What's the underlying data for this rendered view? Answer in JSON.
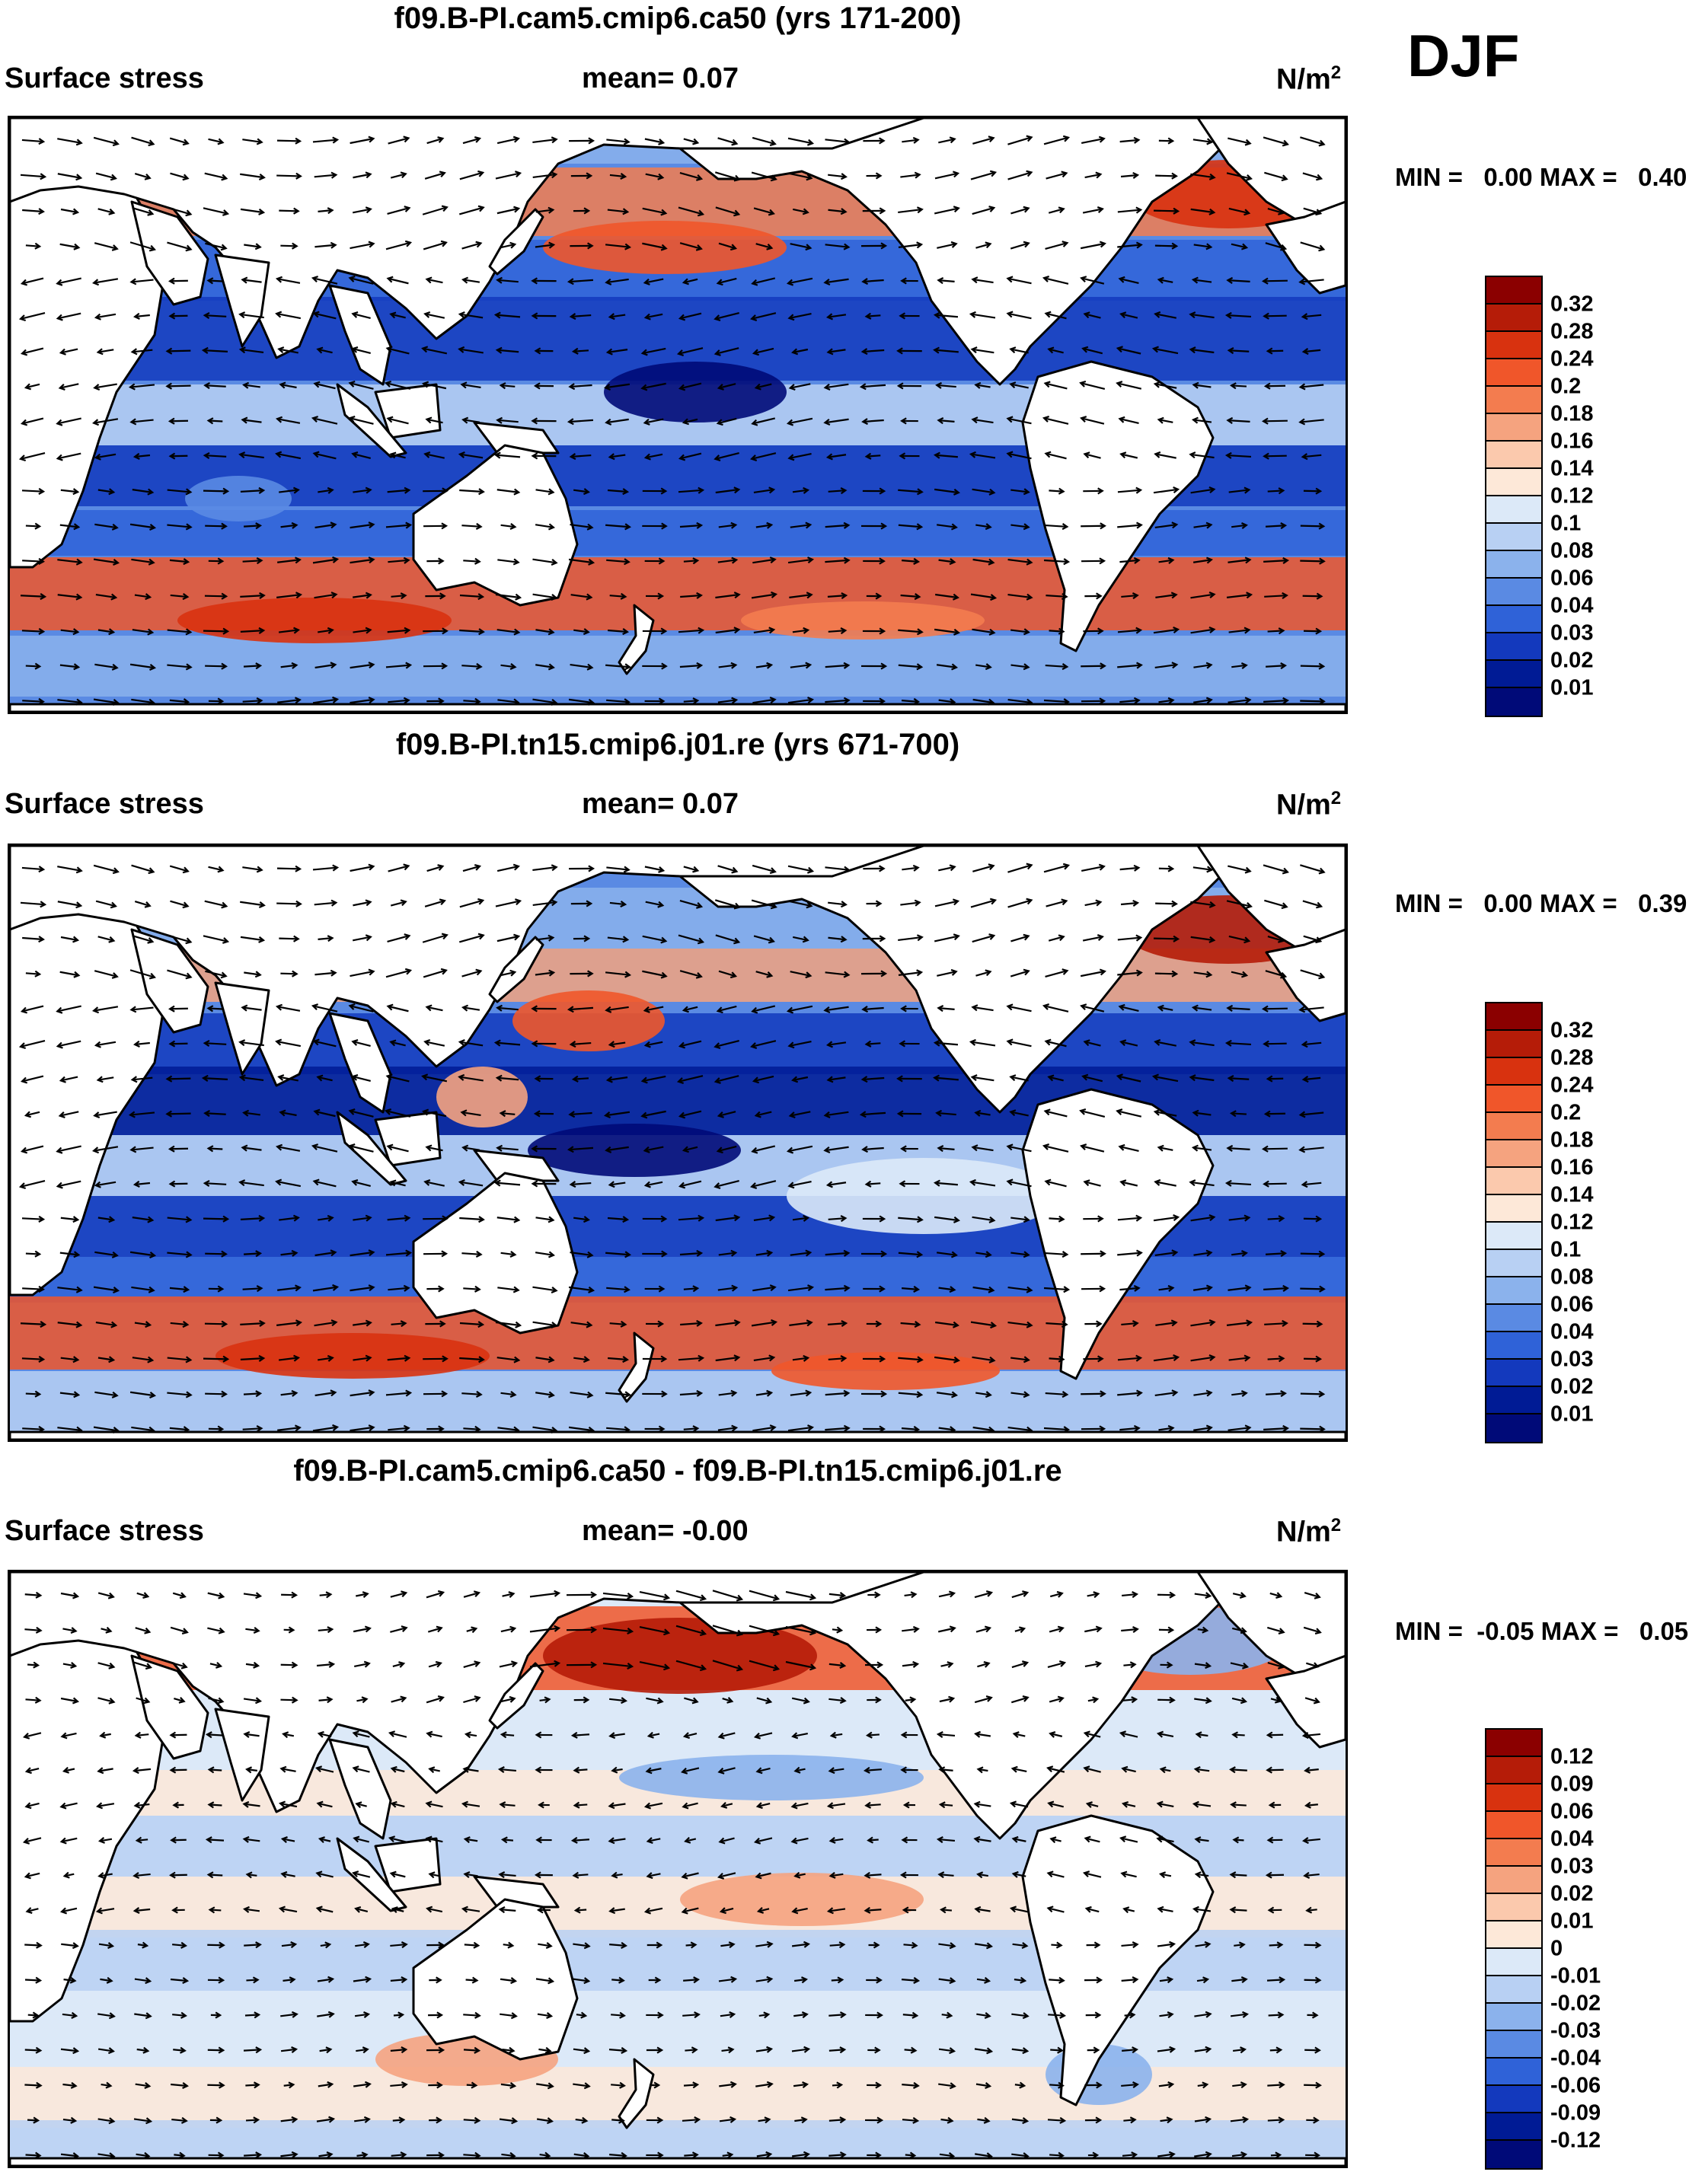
{
  "season": "DJF",
  "panels": [
    {
      "title": "f09.B-PI.cam5.cmip6.ca50 (yrs 171-200)",
      "variable": "Surface stress",
      "mean_label": "mean=   0.07",
      "units": "N/m",
      "units_sup": "2",
      "min_max": "MIN =   0.00 MAX =   0.40",
      "colorbar_labels": [
        "0.32",
        "0.28",
        "0.24",
        "0.2",
        "0.18",
        "0.16",
        "0.14",
        "0.12",
        "0.1",
        "0.08",
        "0.06",
        "0.04",
        "0.03",
        "0.02",
        "0.01"
      ],
      "colors": [
        "#8b0000",
        "#b51c08",
        "#d8320f",
        "#f0562a",
        "#f37c4f",
        "#f5a37f",
        "#fbc9ad",
        "#fde8d8",
        "#dce9f8",
        "#b8d0f3",
        "#8bb2ec",
        "#5a8ae3",
        "#2f62d8",
        "#1339bd",
        "#001b95",
        "#000a78"
      ]
    },
    {
      "title": "f09.B-PI.tn15.cmip6.j01.re (yrs 671-700)",
      "variable": "Surface stress",
      "mean_label": "mean=   0.07",
      "units": "N/m",
      "units_sup": "2",
      "min_max": "MIN =   0.00 MAX =   0.39",
      "colorbar_labels": [
        "0.32",
        "0.28",
        "0.24",
        "0.2",
        "0.18",
        "0.16",
        "0.14",
        "0.12",
        "0.1",
        "0.08",
        "0.06",
        "0.04",
        "0.03",
        "0.02",
        "0.01"
      ],
      "colors": [
        "#8b0000",
        "#b51c08",
        "#d8320f",
        "#f0562a",
        "#f37c4f",
        "#f5a37f",
        "#fbc9ad",
        "#fde8d8",
        "#dce9f8",
        "#b8d0f3",
        "#8bb2ec",
        "#5a8ae3",
        "#2f62d8",
        "#1339bd",
        "#001b95",
        "#000a78"
      ]
    },
    {
      "title": "f09.B-PI.cam5.cmip6.ca50 - f09.B-PI.tn15.cmip6.j01.re",
      "variable": "Surface stress",
      "mean_label": "mean=  -0.00",
      "units": "N/m",
      "units_sup": "2",
      "min_max": "MIN =  -0.05 MAX =   0.05",
      "colorbar_labels": [
        "0.12",
        "0.09",
        "0.06",
        "0.04",
        "0.03",
        "0.02",
        "0.01",
        "0",
        "-0.01",
        "-0.02",
        "-0.03",
        "-0.04",
        "-0.06",
        "-0.09",
        "-0.12"
      ],
      "colors": [
        "#8b0000",
        "#b51c08",
        "#d8320f",
        "#f0562a",
        "#f37c4f",
        "#f5a37f",
        "#fbc9ad",
        "#fde8d8",
        "#dce9f8",
        "#b8d0f3",
        "#8bb2ec",
        "#5a8ae3",
        "#2f62d8",
        "#1339bd",
        "#001b95",
        "#000a78"
      ]
    }
  ],
  "map_features": {
    "land_color": "#ffffff",
    "coastline_color": "#000000",
    "vector_color": "#000000",
    "projection_center": "Pacific",
    "vector_field": "surface wind stress"
  }
}
